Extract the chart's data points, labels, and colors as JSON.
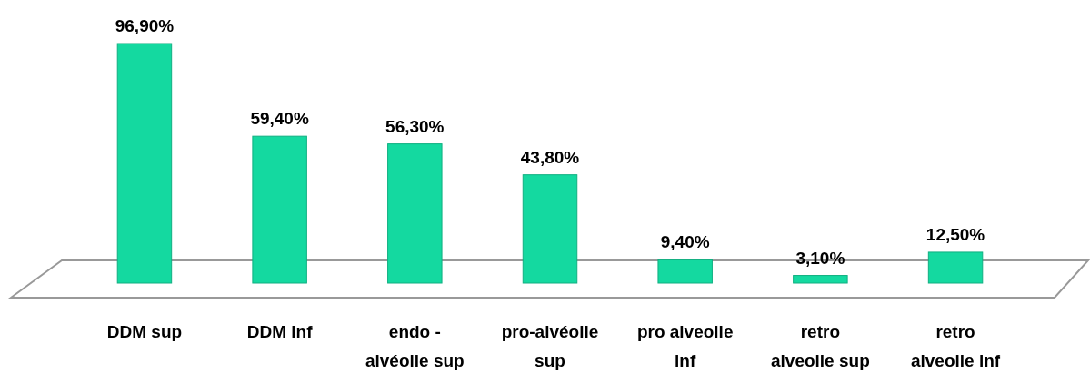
{
  "chart_data": {
    "type": "bar",
    "categories": [
      "DDM sup",
      "DDM inf",
      "endo - alvéolie sup",
      "pro-alvéolie sup",
      "pro alveolie inf",
      "retro alveolie sup",
      "retro alveolie inf"
    ],
    "values": [
      96.9,
      59.4,
      56.3,
      43.8,
      9.4,
      3.1,
      12.5
    ],
    "value_labels": [
      "96,90%",
      "59,40%",
      "56,30%",
      "43,80%",
      "9,40%",
      "3,10%",
      "12,50%"
    ],
    "color": "#14d9a0"
  }
}
